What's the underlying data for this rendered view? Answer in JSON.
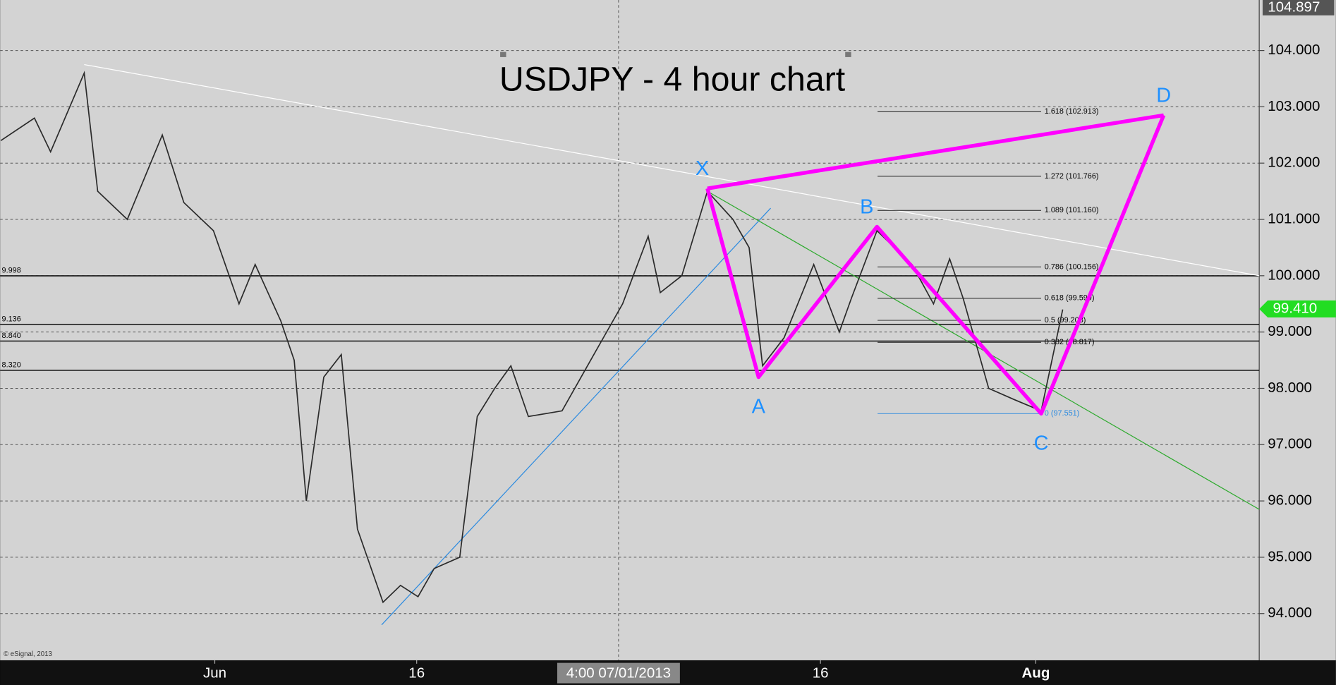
{
  "chart_data": {
    "type": "line",
    "title": "USDJPY - 4 hour chart",
    "watermark": "© eSignal, 2013",
    "x": [
      136.1,
      138.6,
      139.8,
      142.3,
      143.3,
      145.5,
      148.1,
      149.7,
      151.9,
      153.8,
      155.0,
      156.9,
      157.9,
      158.8,
      160.1,
      161.4,
      162.6,
      164.5,
      165.8,
      167.1,
      168.3,
      170.2,
      171.5,
      172.8,
      174.0,
      175.3,
      177.8,
      180.4,
      182.3,
      184.2,
      185.1,
      186.7,
      188.6,
      190.5,
      191.7,
      192.7,
      194.3,
      196.5,
      198.4,
      199.3,
      201.2,
      203.8,
      205.4,
      206.6,
      207.6,
      209.5,
      211.4,
      213.4,
      215.0
    ],
    "values": [
      102.4,
      102.8,
      102.2,
      103.6,
      101.5,
      101.0,
      102.5,
      101.3,
      100.8,
      99.5,
      100.2,
      99.2,
      98.5,
      96.0,
      98.2,
      98.6,
      95.5,
      94.2,
      94.5,
      94.3,
      94.8,
      95.0,
      97.5,
      98.0,
      98.4,
      97.5,
      97.6,
      98.7,
      99.5,
      100.7,
      99.7,
      100.0,
      101.5,
      101.0,
      100.5,
      98.4,
      98.9,
      100.2,
      99.0,
      99.6,
      100.8,
      100.2,
      99.5,
      100.3,
      99.6,
      98.0,
      97.8,
      97.6,
      99.4
    ],
    "color": "#2a2a2a",
    "xlim": [
      136.05,
      229.6
    ],
    "xticks": [
      {
        "value": 152,
        "label": "Jun"
      },
      {
        "value": 167,
        "label": "16"
      },
      {
        "value": 182,
        "label": "4:00 07/01/2013"
      },
      {
        "value": 197,
        "label": "16"
      },
      {
        "value": 213,
        "label": "Aug"
      }
    ],
    "ylim": [
      93.17,
      104.897
    ],
    "yticks": [
      {
        "value": 94,
        "label": "94.000"
      },
      {
        "value": 95,
        "label": "95.000"
      },
      {
        "value": 96,
        "label": "96.000"
      },
      {
        "value": 97,
        "label": "97.000"
      },
      {
        "value": 98,
        "label": "98.000"
      },
      {
        "value": 99,
        "label": "99.000"
      },
      {
        "value": 100,
        "label": "100.000"
      },
      {
        "value": 101,
        "label": "101.000"
      },
      {
        "value": 102,
        "label": "102.000"
      },
      {
        "value": 103,
        "label": "103.000"
      },
      {
        "value": 104,
        "label": "104.000"
      }
    ],
    "grid": true,
    "top_price": {
      "value": 104.897,
      "label": "104.897"
    },
    "last_price": {
      "value": 99.41,
      "label": "99.410",
      "color": "#22dd22"
    },
    "levels": [
      {
        "value": 99.998,
        "label": "9.998"
      },
      {
        "value": 99.136,
        "label": "9.136"
      },
      {
        "value": 98.84,
        "label": "8.840"
      },
      {
        "value": 98.32,
        "label": "8.320"
      }
    ],
    "pattern": {
      "labels": [
        "X",
        "A",
        "B",
        "C",
        "D"
      ],
      "x": [
        188.6,
        192.4,
        201.2,
        213.4,
        222.5
      ],
      "values": [
        101.55,
        98.2,
        100.87,
        97.551,
        102.85
      ],
      "color": "#ff00ff",
      "label_color": "#1e90ff"
    },
    "fib": [
      {
        "value": 102.913,
        "label": "1.618 (102.913)"
      },
      {
        "value": 101.766,
        "label": "1.272 (101.766)"
      },
      {
        "value": 101.16,
        "label": "1.089 (101.160)"
      },
      {
        "value": 100.156,
        "label": "0.786 (100.156)"
      },
      {
        "value": 99.599,
        "label": "0.618 (99.599)"
      },
      {
        "value": 99.208,
        "label": "0.5 (99.208)"
      },
      {
        "value": 98.817,
        "label": "0.382 (98.817)"
      },
      {
        "value": 97.551,
        "label": "0 (97.551)"
      }
    ],
    "trendlines": [
      {
        "color": "#ffffff",
        "x": [
          142.3,
          229.6
        ],
        "values": [
          103.75,
          100.0
        ]
      },
      {
        "color": "#2a8ae0",
        "x": [
          164.4,
          193.3
        ],
        "values": [
          93.8,
          101.2
        ]
      },
      {
        "color": "#2eaa2e",
        "x": [
          188.6,
          229.6
        ],
        "values": [
          101.5,
          95.85
        ]
      }
    ]
  }
}
